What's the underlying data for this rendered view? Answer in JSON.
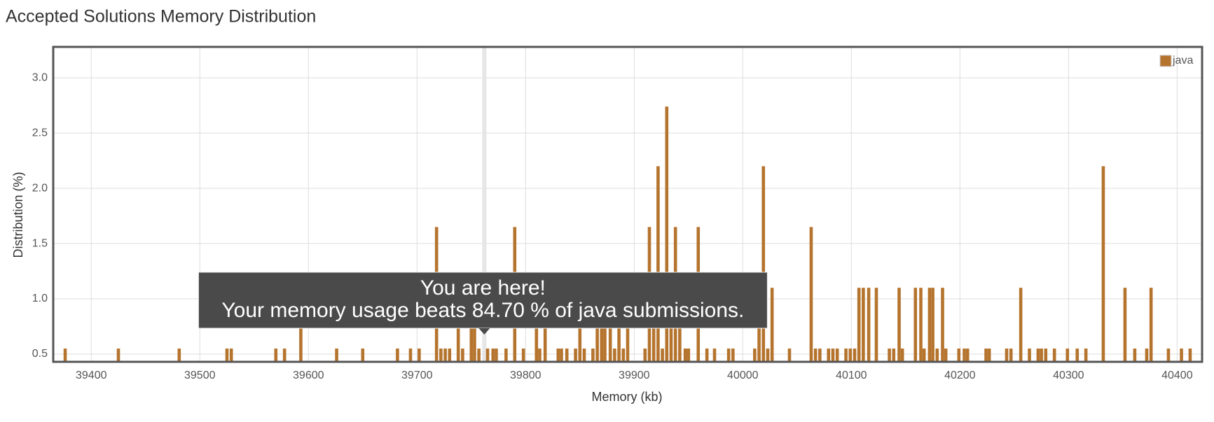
{
  "chart_data": {
    "type": "bar",
    "title": "Accepted Solutions Memory Distribution",
    "x_label": "Memory (kb)",
    "y_label": "Distribution (%)",
    "x": [
      39376,
      39425,
      39481,
      39525,
      39529,
      39570,
      39578,
      39593,
      39626,
      39650,
      39682,
      39694,
      39702,
      39718,
      39722,
      39726,
      39730,
      39738,
      39742,
      39750,
      39753,
      39757,
      39765,
      39770,
      39773,
      39782,
      39790,
      39798,
      39810,
      39813,
      39818,
      39830,
      39833,
      39838,
      39846,
      39850,
      39854,
      39862,
      39866,
      39870,
      39873,
      39878,
      39882,
      39886,
      39890,
      39894,
      39910,
      39914,
      39918,
      39922,
      39926,
      39930,
      39934,
      39938,
      39942,
      39947,
      39950,
      39959,
      39967,
      39974,
      39987,
      39991,
      40011,
      40015,
      40019,
      40023,
      40027,
      40043,
      40063,
      40067,
      40071,
      40079,
      40083,
      40087,
      40095,
      40099,
      40103,
      40107,
      40111,
      40116,
      40123,
      40135,
      40139,
      40144,
      40147,
      40159,
      40164,
      40167,
      40172,
      40175,
      40179,
      40184,
      40187,
      40199,
      40204,
      40207,
      40224,
      40227,
      40243,
      40247,
      40256,
      40264,
      40272,
      40275,
      40279,
      40287,
      40299,
      40308,
      40316,
      40332,
      40352,
      40361,
      40372,
      40376,
      40392,
      40404,
      40412
    ],
    "series": [
      {
        "name": "java",
        "color": "#b5742e",
        "values": [
          0.55,
          0.55,
          0.55,
          0.55,
          0.55,
          0.55,
          0.55,
          1.1,
          0.55,
          0.55,
          0.55,
          0.55,
          0.55,
          1.65,
          0.55,
          0.55,
          0.55,
          1.1,
          0.55,
          1.1,
          1.1,
          0.55,
          0.55,
          0.55,
          0.55,
          0.55,
          1.65,
          0.55,
          1.1,
          0.55,
          1.1,
          0.55,
          0.55,
          0.55,
          0.55,
          1.1,
          0.55,
          0.55,
          1.1,
          1.1,
          1.1,
          1.1,
          0.55,
          1.1,
          0.55,
          1.1,
          0.55,
          1.65,
          1.1,
          2.2,
          0.55,
          2.74,
          1.1,
          1.65,
          1.1,
          0.55,
          0.55,
          1.65,
          0.55,
          0.55,
          0.55,
          0.55,
          0.55,
          1.1,
          2.2,
          0.55,
          1.1,
          0.55,
          1.65,
          0.55,
          0.55,
          0.55,
          0.55,
          0.55,
          0.55,
          0.55,
          0.55,
          1.1,
          1.1,
          1.1,
          1.1,
          0.55,
          0.55,
          1.1,
          0.55,
          1.1,
          1.1,
          0.55,
          1.1,
          1.1,
          0.55,
          1.1,
          0.55,
          0.55,
          0.55,
          0.55,
          0.55,
          0.55,
          0.55,
          0.55,
          1.1,
          0.55,
          0.55,
          0.55,
          0.55,
          0.55,
          0.55,
          0.55,
          0.55,
          2.2,
          1.1,
          0.55,
          0.55,
          1.1,
          0.55,
          0.55,
          0.55
        ]
      }
    ],
    "xlim": [
      39365,
      40423
    ],
    "ylim": [
      0.43,
      3.28
    ],
    "xticks": [
      39400,
      39500,
      39600,
      39700,
      39800,
      39900,
      40000,
      40100,
      40200,
      40300,
      40400
    ],
    "yticks": [
      0.5,
      {
        "value": 1,
        "label": "1.0"
      },
      1.5,
      {
        "value": 2,
        "label": "2.0"
      },
      2.5,
      {
        "value": 3,
        "label": "3.0"
      }
    ],
    "grid": true,
    "legend": "top-right",
    "highlight_x": 39762,
    "tooltip": [
      "You are here!",
      "Your memory usage beats 84.70 % of java submissions."
    ]
  }
}
